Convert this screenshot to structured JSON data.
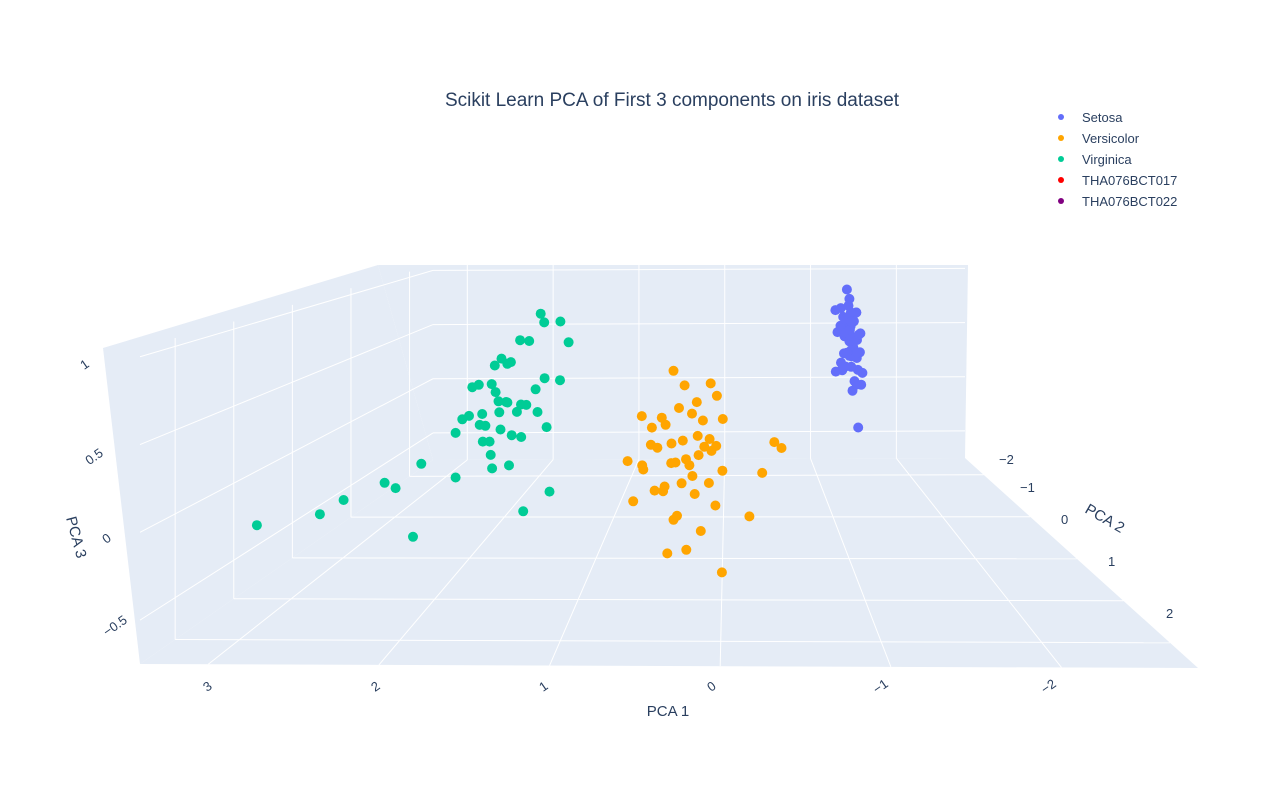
{
  "chart_data": {
    "type": "scatter3d",
    "title": "Scikit Learn PCA of First 3 components on iris dataset",
    "axes": {
      "x": {
        "label": "PCA 1",
        "ticks": [
          "3",
          "2",
          "1",
          "0",
          "−1",
          "−2"
        ]
      },
      "y": {
        "label": "PCA 2",
        "ticks": [
          "−2",
          "−1",
          "0",
          "1",
          "2"
        ]
      },
      "z": {
        "label": "PCA 3",
        "ticks": [
          "1",
          "0.5",
          "0",
          "−0.5"
        ]
      }
    },
    "legend": {
      "position": "top-right",
      "entries": [
        {
          "name": "Setosa",
          "color": "#636efa"
        },
        {
          "name": "Versicolor",
          "color": "#ffa500"
        },
        {
          "name": "Virginica",
          "color": "#00cc96"
        },
        {
          "name": "THA076BCT017",
          "color": "#ff0000"
        },
        {
          "name": "THA076BCT022",
          "color": "#800080"
        }
      ]
    },
    "series": [
      {
        "name": "Setosa",
        "color": "#636efa",
        "points": [
          [
            -1.3,
            -1.9,
            0.9
          ],
          [
            -1.35,
            -2.0,
            0.8
          ],
          [
            -1.32,
            -1.8,
            0.72
          ],
          [
            -1.28,
            -2.1,
            0.7
          ],
          [
            -1.36,
            -1.9,
            0.66
          ],
          [
            -1.33,
            -2.2,
            0.6
          ],
          [
            -1.45,
            -2.1,
            0.66
          ],
          [
            -1.38,
            -1.7,
            0.55
          ],
          [
            -1.31,
            -2.0,
            0.5
          ],
          [
            -1.42,
            -1.95,
            0.45
          ],
          [
            -1.29,
            -2.3,
            0.44
          ],
          [
            -1.34,
            -1.6,
            0.42
          ],
          [
            -1.4,
            -2.2,
            0.38
          ],
          [
            -1.3,
            -1.9,
            0.35
          ],
          [
            -1.47,
            -2.3,
            0.3
          ],
          [
            -1.43,
            -2.0,
            0.28
          ],
          [
            -1.37,
            -1.7,
            0.25
          ],
          [
            -1.26,
            -2.0,
            0.24
          ],
          [
            -1.44,
            -1.8,
            0.2
          ],
          [
            -1.33,
            -2.1,
            0.18
          ],
          [
            -1.39,
            -2.4,
            0.22
          ],
          [
            -1.28,
            -1.6,
            0.3
          ],
          [
            -1.41,
            -2.5,
            0.4
          ],
          [
            -1.35,
            -1.5,
            0.6
          ],
          [
            -1.46,
            -2.6,
            0.5
          ],
          [
            -1.32,
            -2.2,
            0.12
          ],
          [
            -1.38,
            -1.8,
            0.1
          ],
          [
            -1.27,
            -2.3,
            0.08
          ],
          [
            -1.43,
            -2.1,
            0.05
          ],
          [
            -1.36,
            -1.9,
            0.02
          ],
          [
            -1.3,
            -1.7,
            0.66
          ],
          [
            -1.34,
            -2.0,
            0.74
          ],
          [
            -1.4,
            -1.9,
            0.7
          ],
          [
            -1.29,
            -2.4,
            0.62
          ],
          [
            -1.45,
            -2.2,
            0.56
          ],
          [
            -1.37,
            -2.0,
            0.35
          ],
          [
            -1.32,
            -2.1,
            0.45
          ],
          [
            -1.41,
            -2.3,
            0.5
          ],
          [
            -1.35,
            -2.0,
            0.3
          ],
          [
            -1.38,
            -1.6,
            0.15
          ],
          [
            -1.42,
            -1.9,
            -0.3
          ],
          [
            -1.33,
            -2.1,
            0.6
          ],
          [
            -1.3,
            -2.2,
            0.52
          ],
          [
            -1.39,
            -1.7,
            0.4
          ],
          [
            -1.28,
            -2.0,
            0.2
          ],
          [
            -1.36,
            -2.0,
            0.48
          ],
          [
            -1.44,
            -2.2,
            0.63
          ],
          [
            -1.31,
            -1.8,
            0.57
          ],
          [
            -1.4,
            -2.1,
            0.27
          ],
          [
            -1.34,
            -1.9,
            0.58
          ]
        ]
      },
      {
        "name": "Versicolor",
        "color": "#ffa500",
        "points": [
          [
            0.4,
            -0.2,
            0.55
          ],
          [
            0.3,
            0.0,
            0.48
          ],
          [
            0.1,
            -0.3,
            0.44
          ],
          [
            0.2,
            0.1,
            0.38
          ],
          [
            0.05,
            -0.4,
            0.33
          ],
          [
            0.35,
            -0.1,
            0.3
          ],
          [
            0.15,
            0.2,
            0.27
          ],
          [
            0.25,
            -0.2,
            0.24
          ],
          [
            0.45,
            0.0,
            0.2
          ],
          [
            0.0,
            -0.3,
            0.18
          ],
          [
            0.3,
            0.3,
            0.15
          ],
          [
            0.1,
            0.1,
            0.12
          ],
          [
            0.2,
            -0.1,
            0.1
          ],
          [
            0.5,
            0.2,
            0.08
          ],
          [
            0.05,
            0.0,
            0.05
          ],
          [
            0.35,
            0.4,
            0.02
          ],
          [
            0.15,
            -0.2,
            0.0
          ],
          [
            0.25,
            0.3,
            -0.02
          ],
          [
            0.4,
            0.1,
            -0.05
          ],
          [
            0.0,
            0.2,
            -0.08
          ],
          [
            0.3,
            0.5,
            -0.1
          ],
          [
            0.1,
            0.4,
            -0.12
          ],
          [
            0.2,
            0.6,
            -0.15
          ],
          [
            0.45,
            0.3,
            -0.2
          ],
          [
            0.05,
            0.5,
            -0.25
          ],
          [
            0.35,
            0.7,
            -0.3
          ],
          [
            0.15,
            0.8,
            -0.35
          ],
          [
            0.25,
            0.9,
            -0.45
          ],
          [
            0.4,
            0.6,
            -0.55
          ],
          [
            0.0,
            0.7,
            -0.65
          ],
          [
            -0.4,
            0.2,
            0.12
          ],
          [
            -0.45,
            0.3,
            0.1
          ],
          [
            -0.3,
            0.4,
            -0.05
          ],
          [
            -0.2,
            0.6,
            -0.3
          ],
          [
            0.6,
            0.4,
            0.0
          ],
          [
            0.55,
            0.2,
            0.1
          ],
          [
            0.5,
            0.5,
            -0.15
          ],
          [
            0.65,
            0.6,
            -0.2
          ],
          [
            0.6,
            0.3,
            -0.05
          ],
          [
            0.7,
            0.5,
            0.05
          ],
          [
            0.55,
            0.1,
            0.2
          ],
          [
            0.48,
            0.0,
            0.25
          ],
          [
            0.62,
            0.2,
            0.3
          ],
          [
            0.38,
            0.4,
            0.15
          ],
          [
            0.28,
            0.2,
            0.0
          ],
          [
            0.18,
            0.3,
            0.05
          ],
          [
            0.08,
            0.4,
            0.1
          ],
          [
            0.42,
            0.6,
            -0.1
          ],
          [
            0.32,
            0.8,
            -0.25
          ],
          [
            0.22,
            0.5,
            -0.05
          ]
        ]
      },
      {
        "name": "Virginica",
        "color": "#00cc96",
        "points": [
          [
            1.5,
            -0.3,
            0.95
          ],
          [
            1.45,
            -0.2,
            0.9
          ],
          [
            1.3,
            -0.1,
            0.92
          ],
          [
            1.6,
            0.0,
            0.8
          ],
          [
            1.55,
            -0.1,
            0.78
          ],
          [
            1.2,
            0.1,
            0.8
          ],
          [
            1.7,
            0.2,
            0.7
          ],
          [
            1.65,
            0.1,
            0.66
          ],
          [
            1.8,
            0.0,
            0.62
          ],
          [
            1.75,
            -0.2,
            0.6
          ],
          [
            1.35,
            0.3,
            0.58
          ],
          [
            1.25,
            0.2,
            0.55
          ],
          [
            1.4,
            0.4,
            0.52
          ],
          [
            1.9,
            0.1,
            0.5
          ],
          [
            1.85,
            -0.1,
            0.47
          ],
          [
            1.6,
            0.5,
            0.45
          ],
          [
            1.7,
            0.3,
            0.42
          ],
          [
            1.5,
            0.6,
            0.4
          ],
          [
            1.55,
            0.2,
            0.38
          ],
          [
            1.8,
            0.4,
            0.35
          ],
          [
            1.95,
            0.2,
            0.3
          ],
          [
            1.3,
            0.5,
            0.28
          ],
          [
            1.45,
            0.7,
            0.25
          ],
          [
            2.0,
            0.4,
            0.22
          ],
          [
            1.75,
            0.6,
            0.2
          ],
          [
            1.65,
            0.8,
            0.15
          ],
          [
            1.5,
            0.9,
            0.1
          ],
          [
            2.2,
            0.6,
            0.05
          ],
          [
            1.9,
            0.8,
            0.0
          ],
          [
            2.3,
            0.9,
            -0.05
          ],
          [
            2.5,
            0.5,
            -0.1
          ],
          [
            2.7,
            0.8,
            -0.15
          ],
          [
            2.8,
            1.0,
            -0.2
          ],
          [
            3.2,
            1.1,
            -0.25
          ],
          [
            2.1,
            1.2,
            -0.3
          ],
          [
            1.4,
            0.9,
            -0.2
          ],
          [
            1.2,
            1.0,
            -0.05
          ],
          [
            1.6,
            1.0,
            0.1
          ],
          [
            1.85,
            0.5,
            0.55
          ],
          [
            1.7,
            0.4,
            0.5
          ],
          [
            1.55,
            0.7,
            0.48
          ],
          [
            1.45,
            0.5,
            0.43
          ],
          [
            1.35,
            0.6,
            0.4
          ],
          [
            1.75,
            0.7,
            0.33
          ],
          [
            1.9,
            0.6,
            0.35
          ],
          [
            1.6,
            0.7,
            0.3
          ],
          [
            1.5,
            0.8,
            0.28
          ],
          [
            1.8,
            0.3,
            0.25
          ],
          [
            1.65,
            0.5,
            0.38
          ],
          [
            1.7,
            0.6,
            0.2
          ]
        ]
      },
      {
        "name": "THA076BCT017",
        "color": "#ff0000",
        "points": []
      },
      {
        "name": "THA076BCT022",
        "color": "#800080",
        "points": []
      }
    ]
  }
}
